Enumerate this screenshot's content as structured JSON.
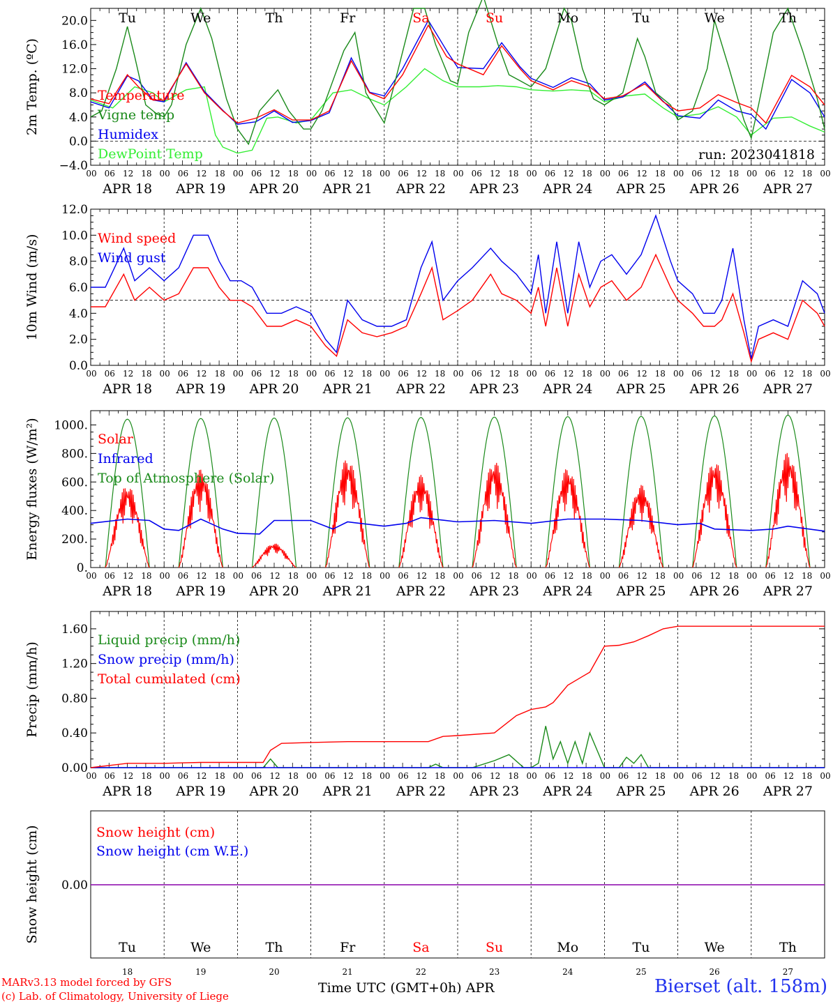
{
  "run_label": "run: 2023041818",
  "footer": {
    "model": "MARv3.13 model forced by GFS",
    "lab": "(c) Lab. of Climatology, University of Liege",
    "time_axis": "Time UTC (GMT+0h) APR",
    "station": "Bierset (alt. 158m)"
  },
  "days": {
    "weekday_labels": [
      "Tu",
      "We",
      "Th",
      "Fr",
      "Sa",
      "Su",
      "Mo",
      "Tu",
      "We",
      "Th"
    ],
    "weekend_indices": [
      4,
      5
    ],
    "date_labels": [
      "APR 18",
      "APR 19",
      "APR 20",
      "APR 21",
      "APR 22",
      "APR 23",
      "APR 24",
      "APR 25",
      "APR 26",
      "APR 27"
    ],
    "day_numbers": [
      "18",
      "19",
      "20",
      "21",
      "22",
      "23",
      "24",
      "25",
      "26",
      "27"
    ],
    "hour_labels": [
      "00",
      "06",
      "12",
      "18"
    ],
    "final_hour_label": "00"
  },
  "colors": {
    "red": "#ff0000",
    "dark_green": "#1a8a1a",
    "blue": "#0000ee",
    "light_green": "#33ee33",
    "purple": "#8800aa",
    "weekend": "#ff0000"
  },
  "chart_data": [
    {
      "id": "temperature",
      "type": "line",
      "ylabel": "2m Temp. (ºC)",
      "ylim": [
        -4,
        22
      ],
      "yticks": [
        -4,
        0,
        4,
        8,
        12,
        16,
        20
      ],
      "ytick_labels": [
        "−4.0",
        "0.0",
        "4.0",
        "8.0",
        "12.0",
        "16.0",
        "20.0"
      ],
      "reference_line": 0,
      "x_unit": "days since APR 18 00 UTC",
      "series": [
        {
          "name": "Temperature",
          "color": "red",
          "x": [
            0,
            0.25,
            0.5,
            0.65,
            0.85,
            1.0,
            1.3,
            1.55,
            1.8,
            2.0,
            2.25,
            2.5,
            2.75,
            3.0,
            3.25,
            3.55,
            3.8,
            4.0,
            4.25,
            4.6,
            4.85,
            5.0,
            5.35,
            5.6,
            5.85,
            6.0,
            6.3,
            6.55,
            6.8,
            7.0,
            7.25,
            7.55,
            7.8,
            8.0,
            8.3,
            8.55,
            8.8,
            9.0,
            9.2,
            9.55,
            9.8,
            10.0
          ],
          "y": [
            7,
            6.2,
            11,
            9,
            6.8,
            6.8,
            12.8,
            8,
            5,
            3,
            3.8,
            5.2,
            3.5,
            3.5,
            5,
            13.3,
            8,
            7,
            11,
            19.2,
            14,
            12.8,
            11,
            15.8,
            12,
            10,
            8.5,
            10,
            9,
            7,
            7.5,
            9.5,
            6.5,
            5,
            5.5,
            7.7,
            6.4,
            5.5,
            3,
            10.9,
            9,
            6
          ]
        },
        {
          "name": "Vigne temp",
          "color": "dark_green",
          "x": [
            0,
            0.15,
            0.35,
            0.5,
            0.6,
            0.75,
            0.9,
            1.0,
            1.1,
            1.3,
            1.5,
            1.65,
            1.85,
            2.0,
            2.15,
            2.3,
            2.55,
            2.7,
            2.9,
            3.0,
            3.15,
            3.45,
            3.6,
            3.75,
            3.9,
            4.0,
            4.15,
            4.4,
            4.55,
            4.7,
            4.9,
            5.0,
            5.15,
            5.35,
            5.55,
            5.7,
            5.85,
            6.0,
            6.2,
            6.45,
            6.55,
            6.7,
            6.85,
            7.0,
            7.25,
            7.45,
            7.55,
            7.7,
            7.9,
            8.0,
            8.2,
            8.4,
            8.5,
            8.7,
            8.9,
            9.0,
            9.1,
            9.3,
            9.5,
            9.7,
            9.9,
            10.0
          ],
          "y": [
            4,
            5,
            12,
            19,
            14,
            6,
            4.5,
            4,
            6,
            16,
            22,
            17,
            7,
            2,
            -0.5,
            5,
            8.5,
            5,
            2,
            2,
            5,
            15,
            18,
            8,
            5,
            3,
            10,
            22,
            22,
            16,
            10,
            9.5,
            18,
            24,
            16,
            11,
            10,
            9,
            12,
            22,
            20,
            12,
            7,
            6,
            8,
            17,
            14,
            8,
            6,
            3.5,
            5,
            12,
            20,
            12,
            3.5,
            0.5,
            6,
            18,
            22,
            15,
            7,
            2
          ]
        },
        {
          "name": "Humidex",
          "color": "blue",
          "x": [
            0,
            0.25,
            0.5,
            0.65,
            0.85,
            1.0,
            1.3,
            1.55,
            1.8,
            2.0,
            2.25,
            2.5,
            2.75,
            3.0,
            3.25,
            3.55,
            3.8,
            4.0,
            4.25,
            4.6,
            4.85,
            5.0,
            5.35,
            5.6,
            5.85,
            6.0,
            6.3,
            6.55,
            6.8,
            7.0,
            7.25,
            7.55,
            7.8,
            8.0,
            8.3,
            8.55,
            8.8,
            9.0,
            9.2,
            9.55,
            9.8,
            10.0
          ],
          "y": [
            6.5,
            5.5,
            10.8,
            10,
            6.8,
            6.5,
            13,
            8.2,
            5.1,
            2.8,
            3.2,
            5,
            3.1,
            3.4,
            4.7,
            13.8,
            8.1,
            7.5,
            12,
            20,
            15,
            12.2,
            12,
            16.3,
            12.3,
            10.4,
            8.9,
            10.5,
            9.5,
            6.8,
            7.3,
            9.8,
            6.6,
            4.2,
            3.8,
            6.8,
            5,
            4.4,
            2,
            10.2,
            8,
            4
          ]
        },
        {
          "name": "DewPoint Temp",
          "color": "light_green",
          "x": [
            0,
            0.3,
            0.6,
            0.85,
            1.0,
            1.3,
            1.55,
            1.7,
            1.8,
            2.0,
            2.2,
            2.4,
            2.55,
            2.8,
            3.0,
            3.3,
            3.55,
            3.8,
            4.0,
            4.3,
            4.55,
            4.8,
            5.0,
            5.3,
            5.55,
            5.8,
            6.0,
            6.3,
            6.55,
            6.8,
            7.0,
            7.3,
            7.55,
            7.8,
            8.0,
            8.3,
            8.55,
            8.8,
            9.0,
            9.3,
            9.55,
            9.8,
            10.0
          ],
          "y": [
            6.8,
            5.5,
            9,
            8,
            6.5,
            8.5,
            9,
            1,
            -1,
            -2,
            -1.5,
            3.8,
            4,
            3,
            3.5,
            8,
            8.5,
            7,
            6,
            9,
            12,
            10,
            9,
            9,
            9.2,
            9,
            8.5,
            8.3,
            8.5,
            8.3,
            6.5,
            7.5,
            7.8,
            5.5,
            4,
            4.5,
            5.7,
            4,
            1,
            3.8,
            4,
            2.5,
            1.5
          ]
        }
      ]
    },
    {
      "id": "wind",
      "type": "line",
      "ylabel": "10m Wind (m/s)",
      "ylim": [
        0,
        12
      ],
      "yticks": [
        0,
        2,
        4,
        6,
        8,
        10,
        12
      ],
      "ytick_labels": [
        "0.0",
        "2.0",
        "4.0",
        "6.0",
        "8.0",
        "10.0",
        "12.0"
      ],
      "reference_line": 5,
      "x_unit": "days since APR 18 00 UTC",
      "series": [
        {
          "name": "Wind speed",
          "color": "red",
          "x": [
            0,
            0.2,
            0.45,
            0.6,
            0.8,
            1.0,
            1.2,
            1.4,
            1.6,
            1.75,
            1.9,
            2.05,
            2.2,
            2.4,
            2.6,
            2.8,
            3.0,
            3.2,
            3.35,
            3.5,
            3.7,
            3.9,
            4.1,
            4.3,
            4.5,
            4.65,
            4.8,
            5.0,
            5.2,
            5.45,
            5.6,
            5.8,
            6.0,
            6.1,
            6.2,
            6.35,
            6.5,
            6.65,
            6.8,
            6.95,
            7.1,
            7.3,
            7.5,
            7.7,
            7.9,
            8.0,
            8.2,
            8.35,
            8.5,
            8.6,
            8.75,
            8.9,
            9.0,
            9.1,
            9.3,
            9.5,
            9.7,
            9.9,
            10.0
          ],
          "y": [
            4.5,
            4.5,
            7,
            5,
            6,
            5,
            5.5,
            7.5,
            7.5,
            6,
            5,
            5,
            4.5,
            3,
            3,
            3.5,
            3,
            1.5,
            0.7,
            3.5,
            2.5,
            2.2,
            2.5,
            3,
            5.5,
            7.5,
            3.5,
            4.2,
            5,
            7,
            5.5,
            5,
            4,
            6,
            3,
            7.5,
            3,
            7,
            4.5,
            6,
            6.5,
            5,
            6,
            8.5,
            6,
            5,
            4,
            3,
            3,
            3.5,
            5.5,
            2.5,
            0.3,
            2,
            2.5,
            2,
            5,
            4,
            3
          ]
        },
        {
          "name": "Wind gust",
          "color": "blue",
          "x": [
            0,
            0.2,
            0.45,
            0.6,
            0.8,
            1.0,
            1.2,
            1.4,
            1.6,
            1.75,
            1.9,
            2.05,
            2.2,
            2.4,
            2.6,
            2.8,
            3.0,
            3.2,
            3.35,
            3.5,
            3.7,
            3.9,
            4.1,
            4.3,
            4.5,
            4.65,
            4.8,
            5.0,
            5.2,
            5.45,
            5.6,
            5.8,
            6.0,
            6.1,
            6.2,
            6.35,
            6.5,
            6.65,
            6.8,
            6.95,
            7.1,
            7.3,
            7.5,
            7.7,
            7.9,
            8.0,
            8.2,
            8.35,
            8.5,
            8.6,
            8.75,
            8.9,
            9.0,
            9.1,
            9.3,
            9.5,
            9.7,
            9.9,
            10.0
          ],
          "y": [
            6,
            6,
            9,
            6.5,
            7.5,
            6.5,
            7.5,
            10,
            10,
            8,
            6.5,
            6.5,
            6,
            4,
            4,
            4.5,
            4,
            2,
            1,
            5,
            3.5,
            3,
            3,
            3.5,
            7.5,
            9.5,
            5,
            6.5,
            7.5,
            9,
            8,
            7,
            5.5,
            8.5,
            4,
            9.5,
            4,
            9.5,
            6,
            8,
            8.5,
            7,
            8.5,
            11.5,
            8,
            6.5,
            5.5,
            4,
            4,
            5,
            9,
            3.5,
            0.5,
            3,
            3.5,
            3,
            6.5,
            5.5,
            4
          ]
        }
      ]
    },
    {
      "id": "energy",
      "type": "line",
      "ylabel": "Energy fluxes (W/m²)",
      "ylim": [
        0,
        1100
      ],
      "yticks": [
        0,
        200,
        400,
        600,
        800,
        1000
      ],
      "ytick_labels": [
        "0.",
        "200.",
        "400.",
        "600.",
        "800.",
        "1000."
      ],
      "x_unit": "days since APR 18 00 UTC",
      "solar_peaks": [
        580,
        690,
        170,
        770,
        650,
        750,
        700,
        580,
        750,
        810
      ],
      "toa_peaks": [
        1040,
        1045,
        1048,
        1050,
        1052,
        1055,
        1058,
        1060,
        1063,
        1068
      ],
      "series": [
        {
          "name": "Solar",
          "color": "red"
        },
        {
          "name": "Infrared",
          "color": "blue",
          "x": [
            0,
            0.5,
            0.8,
            1.0,
            1.2,
            1.5,
            1.8,
            2.0,
            2.3,
            2.5,
            3.0,
            3.3,
            3.5,
            4.0,
            4.3,
            4.5,
            5.0,
            5.5,
            6.0,
            6.5,
            7.0,
            7.5,
            8.0,
            8.3,
            8.5,
            9.0,
            9.3,
            9.5,
            10.0
          ],
          "y": [
            310,
            340,
            330,
            270,
            260,
            340,
            270,
            240,
            235,
            330,
            330,
            270,
            320,
            290,
            310,
            350,
            320,
            330,
            310,
            340,
            340,
            330,
            300,
            310,
            270,
            260,
            270,
            290,
            255
          ]
        },
        {
          "name": "Top of Atmosphere (Solar)",
          "color": "dark_green"
        }
      ]
    },
    {
      "id": "precip",
      "type": "line",
      "ylabel": "Precip (mm/h)",
      "ylim": [
        0,
        1.8
      ],
      "yticks": [
        0,
        0.4,
        0.8,
        1.2,
        1.6
      ],
      "ytick_labels": [
        "0.00",
        "0.40",
        "0.80",
        "1.20",
        "1.60"
      ],
      "x_unit": "days since APR 18 00 UTC",
      "series": [
        {
          "name": "Liquid precip (mm/h)",
          "color": "dark_green",
          "x": [
            0,
            2.35,
            2.45,
            2.55,
            3.0,
            4.6,
            4.7,
            4.8,
            5.2,
            5.5,
            5.7,
            5.9,
            6.0,
            6.1,
            6.2,
            6.3,
            6.4,
            6.5,
            6.6,
            6.7,
            6.8,
            6.9,
            7.0,
            7.2,
            7.3,
            7.4,
            7.5,
            7.6,
            7.8,
            10.0
          ],
          "y": [
            0,
            0,
            0.1,
            0,
            0,
            0,
            0.04,
            0,
            0,
            0.08,
            0.15,
            0,
            0,
            0.05,
            0.48,
            0.1,
            0.3,
            0.05,
            0.3,
            0.05,
            0.4,
            0.2,
            0,
            0,
            0.12,
            0.05,
            0.15,
            0,
            0,
            0
          ]
        },
        {
          "name": "Snow precip (mm/h)",
          "color": "blue",
          "x": [
            0,
            10
          ],
          "y": [
            0,
            0
          ]
        },
        {
          "name": "Total cumulated (cm)",
          "color": "red",
          "x": [
            0,
            0.3,
            0.5,
            1.0,
            1.5,
            2.0,
            2.35,
            2.45,
            2.6,
            3.0,
            3.5,
            4.0,
            4.6,
            4.8,
            5.0,
            5.5,
            5.8,
            6.0,
            6.2,
            6.3,
            6.5,
            6.7,
            6.8,
            6.9,
            7.0,
            7.2,
            7.4,
            7.6,
            7.8,
            8.0,
            10.0
          ],
          "y": [
            0,
            0.03,
            0.05,
            0.05,
            0.06,
            0.06,
            0.06,
            0.2,
            0.28,
            0.29,
            0.3,
            0.3,
            0.3,
            0.36,
            0.37,
            0.4,
            0.6,
            0.67,
            0.7,
            0.75,
            0.95,
            1.05,
            1.1,
            1.25,
            1.4,
            1.41,
            1.45,
            1.52,
            1.6,
            1.63,
            1.63
          ]
        }
      ]
    },
    {
      "id": "snow",
      "type": "line",
      "ylabel": "Snow height (cm)",
      "yticks": [
        0
      ],
      "ytick_labels": [
        "0.00"
      ],
      "x_unit": "days since APR 18 00 UTC",
      "series": [
        {
          "name": "Snow height (cm)",
          "color": "red",
          "x": [
            0,
            10
          ],
          "y": [
            0,
            0
          ]
        },
        {
          "name": "Snow height (cm W.E.)",
          "color": "blue",
          "x": [
            0,
            10
          ],
          "y": [
            0,
            0
          ]
        }
      ],
      "zero_line_color": "purple"
    }
  ]
}
